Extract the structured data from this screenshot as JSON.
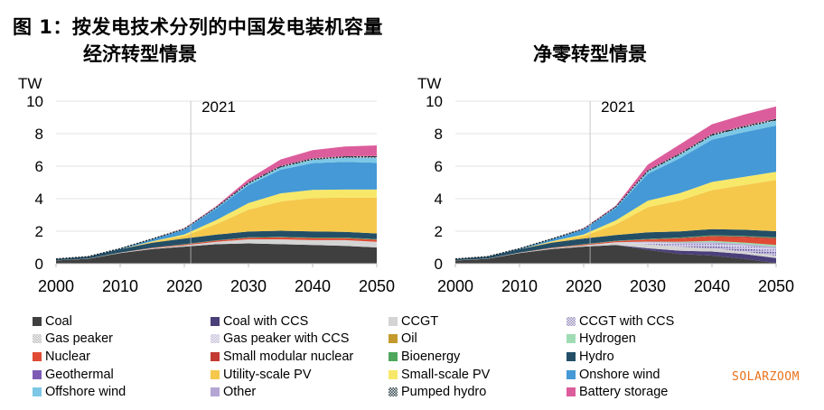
{
  "figure_title": "图 1：按发电技术分列的中国发电装机容量",
  "watermark": "SOLARZOOM",
  "legend": [
    {
      "name": "Coal",
      "color": "#3f3f3f",
      "pattern": "solid"
    },
    {
      "name": "Coal with CCS",
      "color": "#4b3f7a",
      "pattern": "solid"
    },
    {
      "name": "CCGT",
      "color": "#d4d4d4",
      "pattern": "solid"
    },
    {
      "name": "CCGT with CCS",
      "color": "#9a8fc2",
      "pattern": "dotted"
    },
    {
      "name": "Gas peaker",
      "color": "#bdbdbd",
      "pattern": "dotted"
    },
    {
      "name": "Gas peaker with CCS",
      "color": "#c7bfe0",
      "pattern": "dotted"
    },
    {
      "name": "Oil",
      "color": "#c49a2c",
      "pattern": "solid"
    },
    {
      "name": "Hydrogen",
      "color": "#9fdcb4",
      "pattern": "solid"
    },
    {
      "name": "Nuclear",
      "color": "#e04b35",
      "pattern": "solid"
    },
    {
      "name": "Small modular nuclear",
      "color": "#c23a32",
      "pattern": "solid"
    },
    {
      "name": "Bioenergy",
      "color": "#4fa85c",
      "pattern": "solid"
    },
    {
      "name": "Hydro",
      "color": "#234e66",
      "pattern": "solid"
    },
    {
      "name": "Geothermal",
      "color": "#7d5bb5",
      "pattern": "solid"
    },
    {
      "name": "Utility-scale PV",
      "color": "#f5c84c",
      "pattern": "solid"
    },
    {
      "name": "Small-scale PV",
      "color": "#f8e86a",
      "pattern": "solid"
    },
    {
      "name": "Onshore wind",
      "color": "#4499d6",
      "pattern": "solid"
    },
    {
      "name": "Offshore wind",
      "color": "#7cc8e6",
      "pattern": "solid"
    },
    {
      "name": "Other",
      "color": "#b3a6d3",
      "pattern": "solid"
    },
    {
      "name": "Pumped hydro",
      "color": "#2b3f48",
      "pattern": "dotted"
    },
    {
      "name": "Battery storage",
      "color": "#dc5d9c",
      "pattern": "solid"
    }
  ],
  "chart_data": [
    {
      "type": "area",
      "title": "经济转型情景",
      "xlabel": "",
      "ylabel": "TW",
      "xlim": [
        2000,
        2050
      ],
      "ylim": [
        0,
        10
      ],
      "x_ticks": [
        "2000",
        "2010",
        "2020",
        "2030",
        "2040",
        "2050"
      ],
      "y_ticks": [
        "0",
        "2",
        "4",
        "6",
        "8",
        "10"
      ],
      "annotation": {
        "label": "2021",
        "x": 2021
      },
      "grid": true,
      "x": [
        2000,
        2005,
        2010,
        2015,
        2020,
        2025,
        2030,
        2035,
        2040,
        2045,
        2050
      ],
      "series": [
        {
          "name": "Coal",
          "values": [
            0.2,
            0.3,
            0.65,
            0.9,
            1.05,
            1.2,
            1.25,
            1.2,
            1.15,
            1.1,
            1.0
          ]
        },
        {
          "name": "CCGT",
          "values": [
            0.01,
            0.01,
            0.02,
            0.05,
            0.08,
            0.15,
            0.25,
            0.3,
            0.3,
            0.35,
            0.35
          ]
        },
        {
          "name": "Nuclear",
          "values": [
            0.0,
            0.0,
            0.01,
            0.03,
            0.05,
            0.07,
            0.1,
            0.12,
            0.13,
            0.13,
            0.13
          ]
        },
        {
          "name": "Bioenergy",
          "values": [
            0.0,
            0.0,
            0.01,
            0.01,
            0.02,
            0.02,
            0.03,
            0.03,
            0.03,
            0.03,
            0.03
          ]
        },
        {
          "name": "Hydro",
          "values": [
            0.08,
            0.12,
            0.2,
            0.3,
            0.35,
            0.35,
            0.35,
            0.38,
            0.38,
            0.35,
            0.35
          ]
        },
        {
          "name": "Utility-scale PV",
          "values": [
            0.0,
            0.0,
            0.0,
            0.05,
            0.15,
            0.65,
            1.35,
            1.8,
            2.05,
            2.1,
            2.2
          ]
        },
        {
          "name": "Small-scale PV",
          "values": [
            0.0,
            0.0,
            0.0,
            0.03,
            0.1,
            0.25,
            0.4,
            0.5,
            0.5,
            0.5,
            0.5
          ]
        },
        {
          "name": "Onshore wind",
          "values": [
            0.0,
            0.0,
            0.03,
            0.13,
            0.3,
            0.7,
            1.1,
            1.45,
            1.65,
            1.7,
            1.65
          ]
        },
        {
          "name": "Offshore wind",
          "values": [
            0.0,
            0.0,
            0.0,
            0.01,
            0.03,
            0.06,
            0.1,
            0.15,
            0.2,
            0.25,
            0.3
          ]
        },
        {
          "name": "Pumped hydro",
          "values": [
            0.0,
            0.01,
            0.02,
            0.02,
            0.03,
            0.05,
            0.07,
            0.08,
            0.1,
            0.1,
            0.12
          ]
        },
        {
          "name": "Battery storage",
          "values": [
            0.0,
            0.0,
            0.0,
            0.0,
            0.02,
            0.05,
            0.2,
            0.4,
            0.5,
            0.6,
            0.65
          ]
        }
      ]
    },
    {
      "type": "area",
      "title": "净零转型情景",
      "xlabel": "",
      "ylabel": "TW",
      "xlim": [
        2000,
        2050
      ],
      "ylim": [
        0,
        10
      ],
      "x_ticks": [
        "2000",
        "2010",
        "2020",
        "2030",
        "2040",
        "2050"
      ],
      "y_ticks": [
        "0",
        "2",
        "4",
        "6",
        "8",
        "10"
      ],
      "annotation": {
        "label": "2021",
        "x": 2021
      },
      "grid": true,
      "x": [
        2000,
        2005,
        2010,
        2015,
        2020,
        2025,
        2030,
        2035,
        2040,
        2045,
        2050
      ],
      "series": [
        {
          "name": "Coal",
          "values": [
            0.2,
            0.3,
            0.65,
            0.9,
            1.05,
            1.15,
            0.85,
            0.6,
            0.5,
            0.3,
            0.05
          ]
        },
        {
          "name": "Coal with CCS",
          "values": [
            0.0,
            0.0,
            0.0,
            0.0,
            0.0,
            0.0,
            0.1,
            0.2,
            0.25,
            0.3,
            0.3
          ]
        },
        {
          "name": "CCGT",
          "values": [
            0.01,
            0.01,
            0.02,
            0.05,
            0.08,
            0.15,
            0.25,
            0.25,
            0.2,
            0.15,
            0.15
          ]
        },
        {
          "name": "CCGT with CCS",
          "values": [
            0.0,
            0.0,
            0.0,
            0.0,
            0.0,
            0.0,
            0.03,
            0.08,
            0.15,
            0.2,
            0.25
          ]
        },
        {
          "name": "Gas peaker with CCS",
          "values": [
            0.0,
            0.0,
            0.0,
            0.0,
            0.0,
            0.02,
            0.08,
            0.12,
            0.15,
            0.17,
            0.18
          ]
        },
        {
          "name": "Other",
          "values": [
            0.0,
            0.0,
            0.0,
            0.0,
            0.0,
            0.0,
            0.03,
            0.05,
            0.07,
            0.08,
            0.1
          ]
        },
        {
          "name": "Hydrogen",
          "values": [
            0.0,
            0.0,
            0.0,
            0.0,
            0.0,
            0.0,
            0.02,
            0.05,
            0.08,
            0.1,
            0.12
          ]
        },
        {
          "name": "Nuclear",
          "values": [
            0.0,
            0.0,
            0.01,
            0.03,
            0.05,
            0.07,
            0.12,
            0.18,
            0.25,
            0.3,
            0.35
          ]
        },
        {
          "name": "Small modular nuclear",
          "values": [
            0.0,
            0.0,
            0.0,
            0.0,
            0.0,
            0.0,
            0.02,
            0.05,
            0.06,
            0.07,
            0.08
          ]
        },
        {
          "name": "Bioenergy",
          "values": [
            0.0,
            0.0,
            0.01,
            0.01,
            0.02,
            0.02,
            0.03,
            0.03,
            0.04,
            0.04,
            0.04
          ]
        },
        {
          "name": "Hydro",
          "values": [
            0.08,
            0.12,
            0.2,
            0.3,
            0.35,
            0.35,
            0.4,
            0.38,
            0.38,
            0.38,
            0.38
          ]
        },
        {
          "name": "Utility-scale PV",
          "values": [
            0.0,
            0.0,
            0.0,
            0.05,
            0.15,
            0.65,
            1.55,
            1.9,
            2.4,
            2.75,
            3.15
          ]
        },
        {
          "name": "Small-scale PV",
          "values": [
            0.0,
            0.0,
            0.0,
            0.03,
            0.1,
            0.25,
            0.4,
            0.45,
            0.5,
            0.5,
            0.5
          ]
        },
        {
          "name": "Onshore wind",
          "values": [
            0.0,
            0.0,
            0.03,
            0.13,
            0.3,
            0.75,
            1.65,
            2.15,
            2.6,
            2.75,
            2.85
          ]
        },
        {
          "name": "Offshore wind",
          "values": [
            0.0,
            0.0,
            0.0,
            0.01,
            0.03,
            0.06,
            0.15,
            0.22,
            0.25,
            0.28,
            0.3
          ]
        },
        {
          "name": "Pumped hydro",
          "values": [
            0.0,
            0.01,
            0.02,
            0.02,
            0.03,
            0.05,
            0.07,
            0.08,
            0.1,
            0.1,
            0.12
          ]
        },
        {
          "name": "Battery storage",
          "values": [
            0.0,
            0.0,
            0.0,
            0.0,
            0.02,
            0.05,
            0.35,
            0.55,
            0.6,
            0.7,
            0.75
          ]
        }
      ]
    }
  ]
}
